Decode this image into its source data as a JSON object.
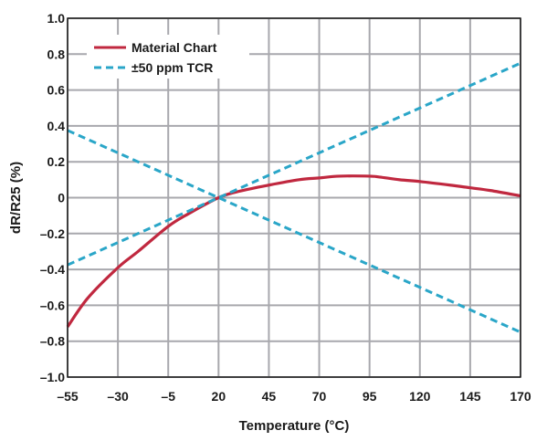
{
  "chart_data": {
    "type": "line",
    "xlabel": "Temperature (°C)",
    "ylabel": "dR/R25 (%)",
    "xlim": [
      -55,
      170
    ],
    "ylim": [
      -1.0,
      1.0
    ],
    "x_ticks": [
      -55,
      -30,
      -5,
      20,
      45,
      70,
      95,
      120,
      145,
      170
    ],
    "x_tick_labels": [
      "–55",
      "–30",
      "–5",
      "20",
      "45",
      "70",
      "95",
      "120",
      "145",
      "170"
    ],
    "y_ticks": [
      1.0,
      0.8,
      0.6,
      0.4,
      0.2,
      0,
      -0.2,
      -0.4,
      -0.6,
      -0.8,
      -1.0
    ],
    "y_tick_labels": [
      "1.0",
      "0.8",
      "0.6",
      "0.4",
      "0.2",
      "0",
      "–0.2",
      "–0.4",
      "–0.6",
      "–0.8",
      "–1.0"
    ],
    "grid": true,
    "legend_position": "top-left",
    "series": [
      {
        "name": "Material Chart",
        "style": "solid",
        "color": "#c0283f",
        "x": [
          -55,
          -45,
          -30,
          -20,
          -5,
          5,
          20,
          30,
          45,
          60,
          70,
          80,
          95,
          100,
          110,
          120,
          135,
          145,
          155,
          170
        ],
        "y": [
          -0.72,
          -0.56,
          -0.39,
          -0.3,
          -0.16,
          -0.09,
          0.0,
          0.035,
          0.07,
          0.1,
          0.11,
          0.12,
          0.12,
          0.115,
          0.1,
          0.09,
          0.07,
          0.055,
          0.04,
          0.01
        ]
      },
      {
        "name": "±50 ppm TCR",
        "style": "dashed",
        "color": "#2aa6c8",
        "x": [
          -55,
          170
        ],
        "y": [
          -0.375,
          0.75
        ]
      },
      {
        "name": "",
        "style": "dashed",
        "color": "#2aa6c8",
        "x": [
          -55,
          170
        ],
        "y": [
          0.375,
          -0.75
        ]
      }
    ]
  }
}
